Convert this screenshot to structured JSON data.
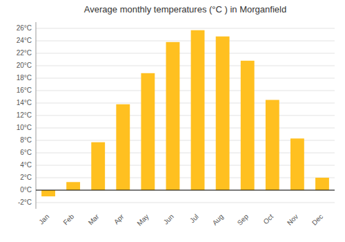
{
  "chart_data": {
    "type": "bar",
    "title": "Average monthly temperatures (°C ) in Morganfield",
    "categories": [
      "Jan",
      "Feb",
      "Mar",
      "Apr",
      "May",
      "Jun",
      "Jul",
      "Aug",
      "Sep",
      "Oct",
      "Nov",
      "Dec"
    ],
    "values": [
      -1.0,
      1.3,
      7.7,
      13.8,
      18.8,
      23.8,
      25.7,
      24.7,
      20.8,
      14.5,
      8.3,
      2.0
    ],
    "color": "#FFC020",
    "ylim": [
      -3.0,
      27.0
    ],
    "yticks": [
      {
        "value": -2,
        "label": "-2°C"
      },
      {
        "value": 0,
        "label": "0°C"
      },
      {
        "value": 2,
        "label": "2°C"
      },
      {
        "value": 4,
        "label": "4°C"
      },
      {
        "value": 6,
        "label": "6°C"
      },
      {
        "value": 8,
        "label": "8°C"
      },
      {
        "value": 10,
        "label": "10°C"
      },
      {
        "value": 12,
        "label": "12°C"
      },
      {
        "value": 14,
        "label": "14°C"
      },
      {
        "value": 16,
        "label": "16°C"
      },
      {
        "value": 18,
        "label": "18°C"
      },
      {
        "value": 20,
        "label": "20°C"
      },
      {
        "value": 22,
        "label": "22°C"
      },
      {
        "value": 24,
        "label": "24°C"
      },
      {
        "value": 26,
        "label": "26°C"
      }
    ],
    "grid": true
  }
}
